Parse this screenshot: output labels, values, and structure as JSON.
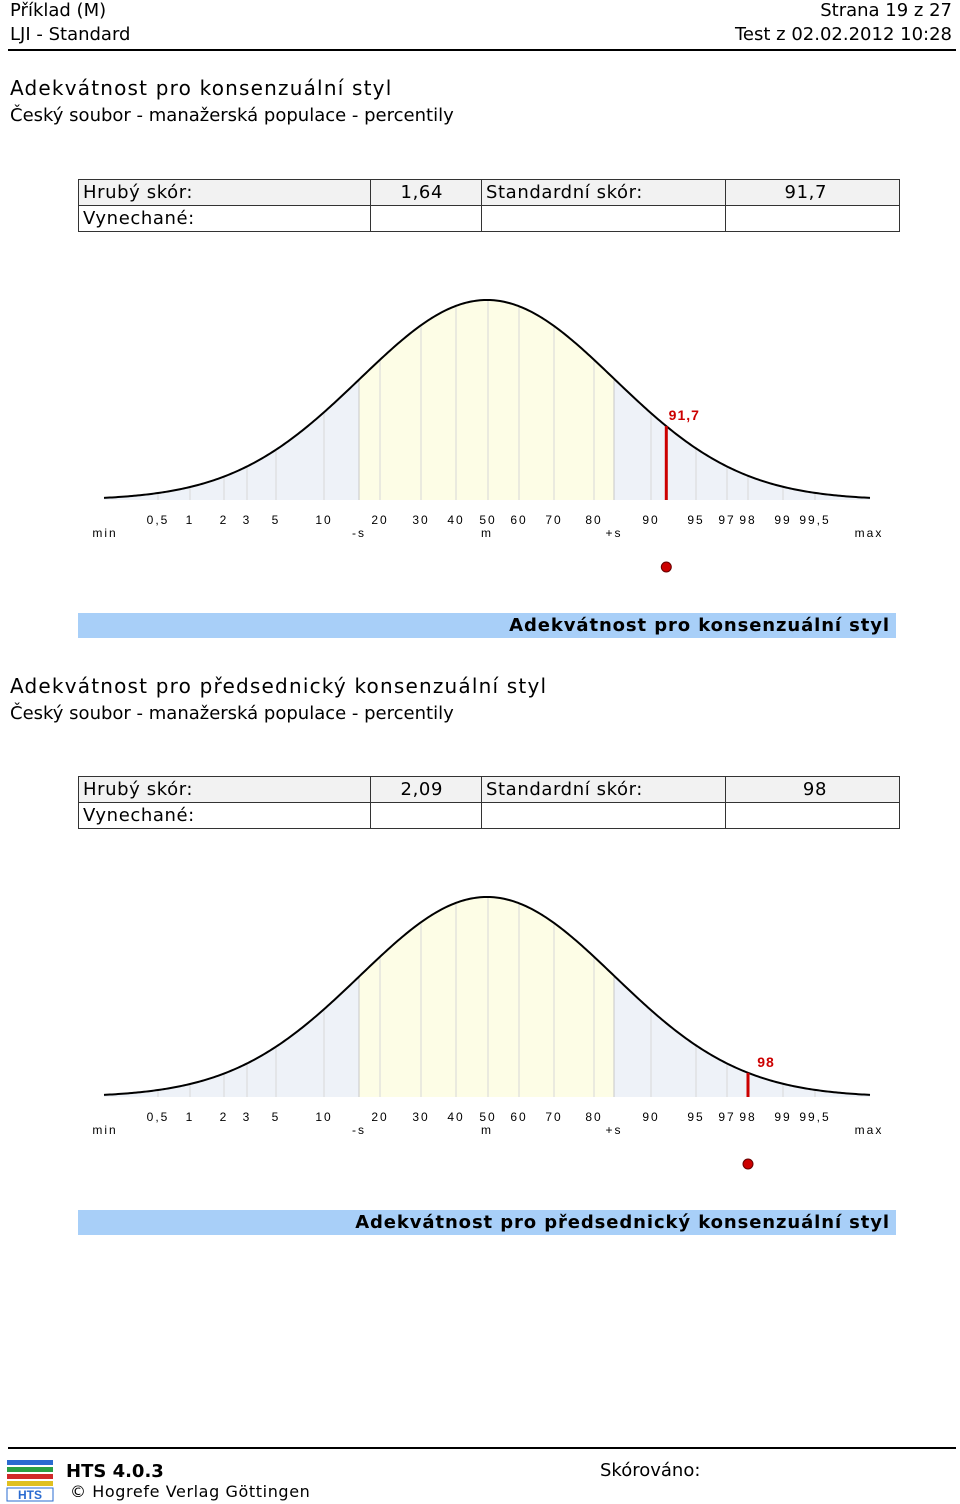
{
  "header": {
    "example": "Příklad (M)",
    "page": "Strana 19 z 27",
    "test_name": "LJI - Standard",
    "test_date": "Test z 02.02.2012 10:28"
  },
  "sections": [
    {
      "title": "Adekvátnost pro konsenzuální styl",
      "subtitle": "Český soubor - manažerská populace - percentily",
      "raw_label": "Hrubý skór:",
      "raw_value": "1,64",
      "std_label": "Standardní skór:",
      "std_value": "91,7",
      "missing_label": "Vynechané:",
      "marker_label": "91,7",
      "band_label": "Adekvátnost pro konsenzuální styl"
    },
    {
      "title": "Adekvátnost pro předsednický konsenzuální styl",
      "subtitle": "Český soubor - manažerská populace - percentily",
      "raw_label": "Hrubý skór:",
      "raw_value": "2,09",
      "std_label": "Standardní skór:",
      "std_value": "98",
      "missing_label": "Vynechané:",
      "marker_label": "98",
      "band_label": "Adekvátnost pro předsednický konsenzuální styl"
    }
  ],
  "chart_data": [
    {
      "type": "area",
      "description_free": true,
      "x_ticks": [
        "0,5",
        "1",
        "2",
        "3",
        "5",
        "10",
        "20",
        "30",
        "40",
        "50",
        "60",
        "70",
        "80",
        "90",
        "95",
        "97",
        "98",
        "99",
        "99,5"
      ],
      "x_tick_percentiles": [
        0.5,
        1,
        2,
        3,
        5,
        10,
        20,
        30,
        40,
        50,
        60,
        70,
        80,
        90,
        95,
        97,
        98,
        99,
        99.5
      ],
      "axis_left": "min",
      "axis_right": "max",
      "sd_labels": [
        "-s",
        "m",
        "+s"
      ],
      "value": 91.7,
      "value_label": "91,7",
      "marker_color": "#cc0000"
    },
    {
      "type": "area",
      "description_free": true,
      "x_ticks": [
        "0,5",
        "1",
        "2",
        "3",
        "5",
        "10",
        "20",
        "30",
        "40",
        "50",
        "60",
        "70",
        "80",
        "90",
        "95",
        "97",
        "98",
        "99",
        "99,5"
      ],
      "x_tick_percentiles": [
        0.5,
        1,
        2,
        3,
        5,
        10,
        20,
        30,
        40,
        50,
        60,
        70,
        80,
        90,
        95,
        97,
        98,
        99,
        99.5
      ],
      "axis_left": "min",
      "axis_right": "max",
      "sd_labels": [
        "-s",
        "m",
        "+s"
      ],
      "value": 98,
      "value_label": "98",
      "marker_color": "#cc0000"
    }
  ],
  "footer": {
    "logo_text": "HTS",
    "version": "HTS 4.0.3",
    "copyright": "© Hogrefe Verlag Göttingen",
    "scored_label": "Skórováno:"
  },
  "colors": {
    "mid_band": "#fdfde6",
    "tail_band": "#eef2f8",
    "label_band": "#a8cff8",
    "marker": "#cc0000"
  }
}
